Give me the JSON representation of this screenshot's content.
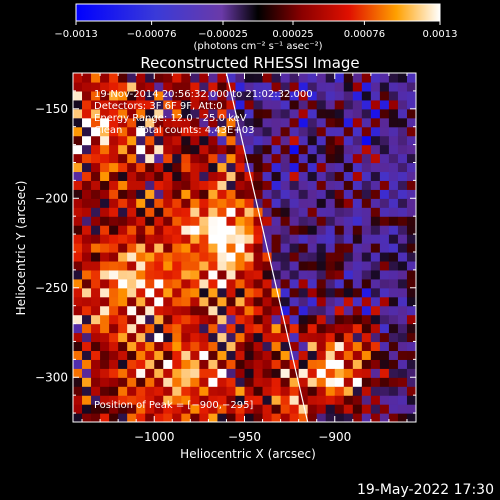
{
  "chart_data": {
    "type": "heatmap",
    "title": "Reconstructed RHESSI Image",
    "xlabel": "Heliocentric X (arcsec)",
    "ylabel": "Heliocentric Y (arcsec)",
    "xlim": [
      -1045,
      -855
    ],
    "ylim": [
      -325,
      -130
    ],
    "x_ticks": [
      -1000,
      -950,
      -900
    ],
    "x_tick_labels": [
      "−1000",
      "−950",
      "−900"
    ],
    "y_ticks": [
      -150,
      -200,
      -250,
      -300
    ],
    "y_tick_labels": [
      "−150",
      "−200",
      "−250",
      "−300"
    ],
    "colorbar": {
      "range": [
        -0.0013,
        0.0013
      ],
      "ticks": [
        -0.0013,
        -0.00076,
        -0.00025,
        0.00025,
        0.00076,
        0.0013
      ],
      "tick_labels": [
        "−0.0013",
        "−0.00076",
        "−0.00025",
        "0.00025",
        "0.00076",
        "0.0013"
      ],
      "unit_label": "(photons cm⁻² s⁻¹ asec⁻²)"
    },
    "annotations": [
      "19-Nov-2014 20:56:32.000 to 21:02:32.000",
      "Detectors: 3F 6F 9F, Att:0",
      "Energy Range: 12.0 - 25.0 keV",
      "Clean     Total counts: 4.43E+03"
    ],
    "peak_label": "Position of Peak = [−900,−295]",
    "peak": {
      "x": -900,
      "y": -295
    },
    "sources": [
      {
        "x": -965,
        "y": -220,
        "intensity": 0.001
      },
      {
        "x": -900,
        "y": -295,
        "intensity": 0.0013
      },
      {
        "x": -1015,
        "y": -250,
        "intensity": 0.0007
      },
      {
        "x": -985,
        "y": -300,
        "intensity": 0.0007
      },
      {
        "x": -1025,
        "y": -160,
        "intensity": 0.0006
      }
    ],
    "limb_line": [
      {
        "x": -960,
        "y": -130
      },
      {
        "x": -915,
        "y": -325
      }
    ]
  },
  "footer": {
    "date": "19-May-2022 17:30"
  }
}
